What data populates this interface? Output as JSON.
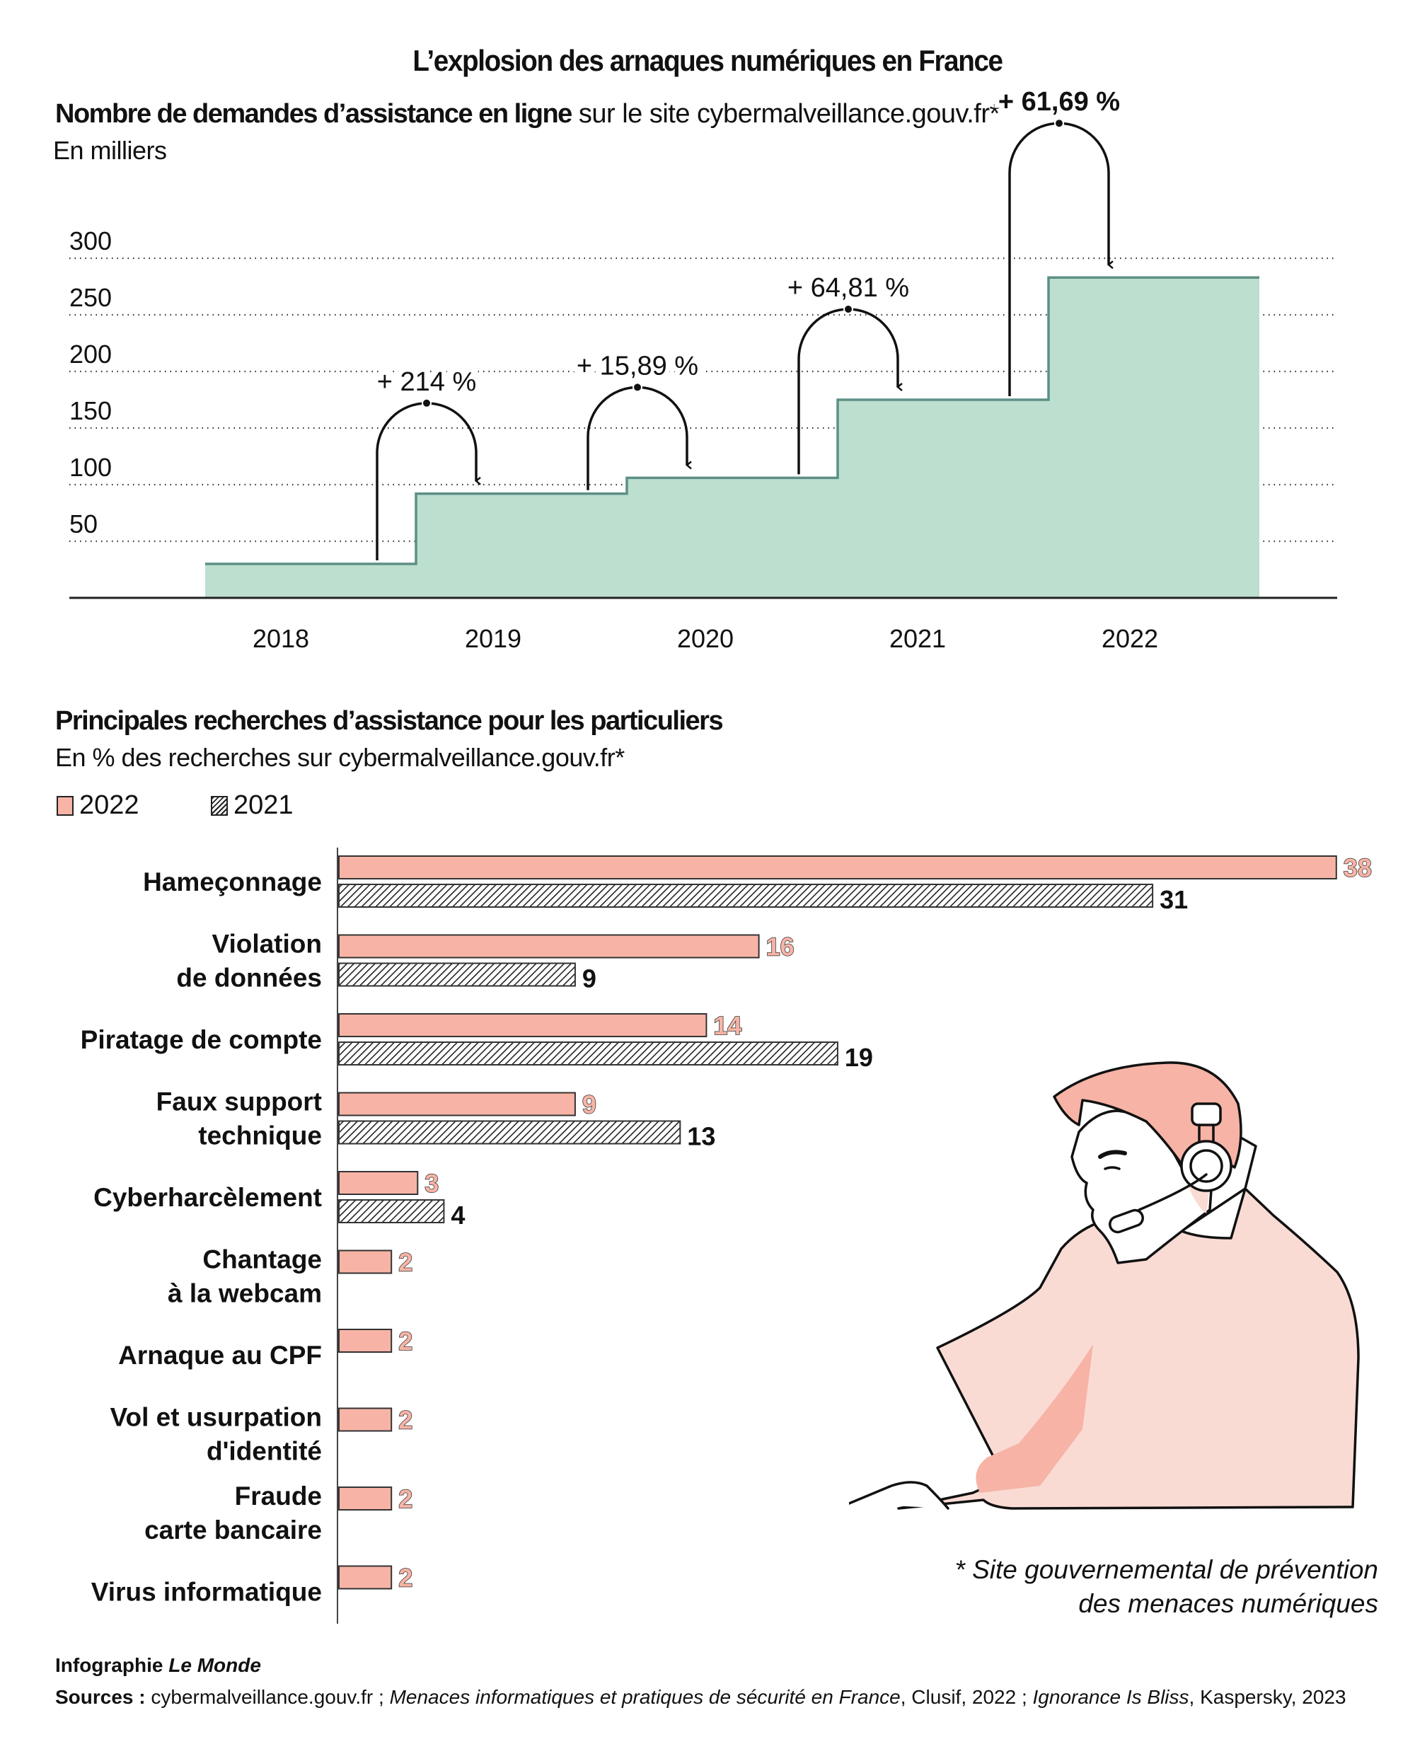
{
  "title": "L’explosion des arnaques numériques en France",
  "colors": {
    "area_fill": "#bddfcf",
    "area_stroke": "#5d8f85",
    "bar_2022": "#f7b4a6",
    "hatch": "#222222",
    "illustration_dark": "#f6b3a6",
    "illustration_light": "#fadbd4"
  },
  "section1": {
    "heading_bold": "Nombre de demandes d’assistance en ligne",
    "heading_regular": " sur le site cybermalveillance.gouv.fr*",
    "unit": "En milliers"
  },
  "section2": {
    "heading": "Principales recherches d’assistance pour les particuliers",
    "unit": "En % des recherches sur cybermalveillance.gouv.fr*",
    "legend": [
      {
        "label": "2022",
        "style": "solid"
      },
      {
        "label": "2021",
        "style": "hatched"
      }
    ]
  },
  "footnote": [
    "* Site gouvernemental de prévention",
    "des menaces numériques"
  ],
  "credit": {
    "prefix": "Infographie ",
    "outlet": "Le Monde"
  },
  "sources": {
    "label": "Sources :",
    "parts": [
      {
        "text": " cybermalveillance.gouv.fr ; ",
        "italic": false
      },
      {
        "text": "Menaces informatiques et pratiques de sécurité en France",
        "italic": true
      },
      {
        "text": ", Clusif, 2022 ; ",
        "italic": false
      },
      {
        "text": "Ignorance Is Bliss",
        "italic": true
      },
      {
        "text": ", Kaspersky, 2023",
        "italic": false
      }
    ]
  },
  "illustration": {
    "subject": "person-with-headset"
  },
  "chart_data": [
    {
      "type": "area",
      "subtype": "step",
      "title": "Nombre de demandes d’assistance en ligne sur le site cybermalveillance.gouv.fr*",
      "ylabel": "En milliers",
      "xlabel": "",
      "categories": [
        "2018",
        "2019",
        "2020",
        "2021",
        "2022"
      ],
      "values": [
        30,
        92,
        106,
        175,
        283
      ],
      "yticks": [
        50,
        100,
        150,
        200,
        250,
        300
      ],
      "ylim": [
        0,
        300
      ],
      "grid": true,
      "annotations": [
        {
          "from": "2018",
          "to": "2019",
          "label": "+ 214 %",
          "bold": false
        },
        {
          "from": "2019",
          "to": "2020",
          "label": "+ 15,89 %",
          "bold": false
        },
        {
          "from": "2020",
          "to": "2021",
          "label": "+ 64,81 %",
          "bold": false
        },
        {
          "from": "2021",
          "to": "2022",
          "label": "+ 61,69 %",
          "bold": true
        }
      ]
    },
    {
      "type": "bar",
      "orientation": "horizontal",
      "title": "Principales recherches d’assistance pour les particuliers",
      "xlabel": "En % des recherches sur cybermalveillance.gouv.fr*",
      "legend_position": "top-left",
      "categories": [
        [
          "Hameçonnage"
        ],
        [
          "Violation",
          "de données"
        ],
        [
          "Piratage de compte"
        ],
        [
          "Faux support",
          "technique"
        ],
        [
          "Cyberharcèlement"
        ],
        [
          "Chantage",
          "à la webcam"
        ],
        [
          "Arnaque au CPF"
        ],
        [
          "Vol et usurpation",
          "d'identité"
        ],
        [
          "Fraude",
          "carte bancaire"
        ],
        [
          "Virus informatique"
        ]
      ],
      "series": [
        {
          "name": "2022",
          "values": [
            38,
            16,
            14,
            9,
            3,
            2,
            2,
            2,
            2,
            2
          ]
        },
        {
          "name": "2021",
          "values": [
            31,
            9,
            19,
            13,
            4,
            null,
            null,
            null,
            null,
            null
          ]
        }
      ],
      "xlim": [
        0,
        38
      ]
    }
  ]
}
